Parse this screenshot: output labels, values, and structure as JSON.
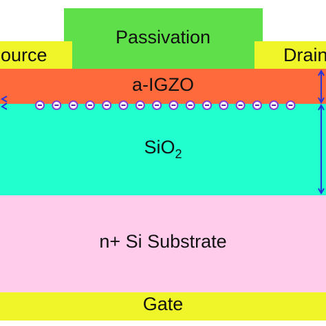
{
  "passivation": {
    "label": "Passivation"
  },
  "source": {
    "label": "Source"
  },
  "drain": {
    "label": "Drain"
  },
  "channel": {
    "label": "a-IGZO"
  },
  "dielectric": {
    "label": "SiO",
    "subscript": "2"
  },
  "substrate": {
    "label": "n+ Si Substrate"
  },
  "gate": {
    "label": "Gate"
  }
}
